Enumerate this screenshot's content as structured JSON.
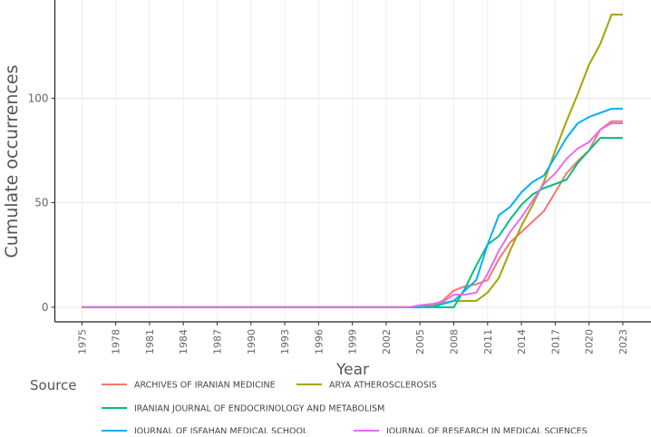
{
  "chart_data": {
    "type": "line",
    "title": "",
    "xlabel": "Year",
    "ylabel": "Cumulate occurrences",
    "xlim": [
      1972.6,
      2025.5
    ],
    "ylim": [
      -7,
      147
    ],
    "x_ticks": [
      "1975",
      "1978",
      "1981",
      "1984",
      "1987",
      "1990",
      "1993",
      "1996",
      "1999",
      "2002",
      "2005",
      "2008",
      "2011",
      "2014",
      "2017",
      "2020",
      "2023"
    ],
    "y_ticks": [
      "0",
      "50",
      "100"
    ],
    "grid": true,
    "legend": {
      "title": "Source",
      "placement": "bottom"
    },
    "series": [
      {
        "name": "ARCHIVES OF IRANIAN MEDICINE",
        "color": "#F8766D",
        "points": [
          [
            1975,
            0
          ],
          [
            2004,
            0
          ],
          [
            2005,
            0
          ],
          [
            2006,
            1
          ],
          [
            2007,
            3
          ],
          [
            2008,
            8
          ],
          [
            2009,
            10
          ],
          [
            2010,
            11
          ],
          [
            2011,
            13
          ],
          [
            2012,
            23
          ],
          [
            2013,
            31
          ],
          [
            2014,
            36
          ],
          [
            2015,
            41
          ],
          [
            2016,
            46
          ],
          [
            2017,
            55
          ],
          [
            2018,
            64
          ],
          [
            2019,
            70
          ],
          [
            2020,
            75
          ],
          [
            2021,
            85
          ],
          [
            2022,
            89
          ],
          [
            2023,
            89
          ]
        ]
      },
      {
        "name": "ARYA ATHEROSCLEROSIS",
        "color": "#A3A500",
        "points": [
          [
            1975,
            0
          ],
          [
            2004,
            0
          ],
          [
            2005,
            0
          ],
          [
            2006,
            1
          ],
          [
            2007,
            2
          ],
          [
            2008,
            3
          ],
          [
            2009,
            3
          ],
          [
            2010,
            3
          ],
          [
            2011,
            7
          ],
          [
            2012,
            14
          ],
          [
            2013,
            27
          ],
          [
            2014,
            39
          ],
          [
            2015,
            49
          ],
          [
            2016,
            60
          ],
          [
            2017,
            75
          ],
          [
            2018,
            89
          ],
          [
            2019,
            102
          ],
          [
            2020,
            116
          ],
          [
            2021,
            126
          ],
          [
            2022,
            140
          ],
          [
            2023,
            140
          ]
        ]
      },
      {
        "name": "IRANIAN JOURNAL OF ENDOCRINOLOGY AND METABOLISM",
        "color": "#00BF7D",
        "points": [
          [
            1975,
            0
          ],
          [
            2004,
            0
          ],
          [
            2005,
            0
          ],
          [
            2006,
            0
          ],
          [
            2007,
            0
          ],
          [
            2008,
            0
          ],
          [
            2009,
            9
          ],
          [
            2010,
            20
          ],
          [
            2011,
            30
          ],
          [
            2012,
            34
          ],
          [
            2013,
            42
          ],
          [
            2014,
            49
          ],
          [
            2015,
            54
          ],
          [
            2016,
            57
          ],
          [
            2017,
            59
          ],
          [
            2018,
            61
          ],
          [
            2019,
            69
          ],
          [
            2020,
            75
          ],
          [
            2021,
            81
          ],
          [
            2022,
            81
          ],
          [
            2023,
            81
          ]
        ]
      },
      {
        "name": "JOURNAL OF ISFAHAN MEDICAL SCHOOL",
        "color": "#00B0F6",
        "points": [
          [
            1975,
            0
          ],
          [
            2004,
            0
          ],
          [
            2005,
            0
          ],
          [
            2006,
            0
          ],
          [
            2007,
            1.5
          ],
          [
            2008,
            3
          ],
          [
            2009,
            8
          ],
          [
            2010,
            13
          ],
          [
            2011,
            30
          ],
          [
            2012,
            44
          ],
          [
            2013,
            48
          ],
          [
            2014,
            55
          ],
          [
            2015,
            60
          ],
          [
            2016,
            63
          ],
          [
            2017,
            72
          ],
          [
            2018,
            81
          ],
          [
            2019,
            88
          ],
          [
            2020,
            91
          ],
          [
            2021,
            93
          ],
          [
            2022,
            95
          ],
          [
            2023,
            95
          ]
        ]
      },
      {
        "name": "JOURNAL OF RESEARCH IN MEDICAL SCIENCES",
        "color": "#E76BF3",
        "points": [
          [
            1975,
            0
          ],
          [
            2004,
            0
          ],
          [
            2005,
            1
          ],
          [
            2006,
            1.5
          ],
          [
            2007,
            2.5
          ],
          [
            2008,
            6
          ],
          [
            2009,
            6
          ],
          [
            2010,
            7
          ],
          [
            2011,
            16
          ],
          [
            2012,
            27
          ],
          [
            2013,
            36
          ],
          [
            2014,
            43
          ],
          [
            2015,
            51
          ],
          [
            2016,
            59
          ],
          [
            2017,
            64
          ],
          [
            2018,
            71
          ],
          [
            2019,
            76
          ],
          [
            2020,
            79
          ],
          [
            2021,
            85
          ],
          [
            2022,
            88
          ],
          [
            2023,
            88
          ]
        ]
      }
    ]
  }
}
